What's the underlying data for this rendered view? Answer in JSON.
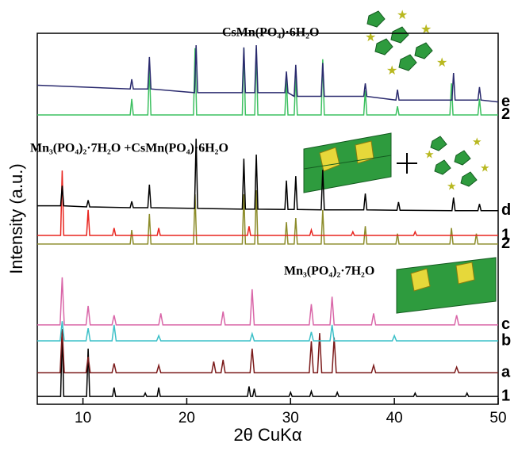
{
  "chart_data": {
    "type": "line",
    "x_label": "2θ CuKα",
    "y_label": "Intensity (a.u.)",
    "xlim": [
      5.6,
      50
    ],
    "ylim": [
      0,
      100
    ],
    "xticks": [
      10,
      20,
      30,
      40,
      50
    ],
    "annotations": [
      "CsMn(PO₄)·6H₂O",
      "Mn₃(PO₄)₂·7H₂O +CsMn(PO₄)·6H₂O",
      "Mn₃(PO₄)₂·7H₂O"
    ],
    "series": [
      {
        "name": "1",
        "color": "#000000",
        "x": [
          5.6,
          7.85,
          8,
          8.15,
          10.35,
          10.5,
          10.65,
          12.85,
          13,
          13.15,
          15.85,
          16,
          16.15,
          17.15,
          17.3,
          17.45,
          25.85,
          26,
          26.15,
          26.35,
          26.5,
          26.65,
          29.85,
          30,
          30.15,
          31.85,
          32,
          32.15,
          34.35,
          34.5,
          34.65,
          41.85,
          42,
          42.15,
          46.85,
          47,
          47.15,
          50
        ],
        "values": [
          2.1,
          2.1,
          19.7,
          2.1,
          2.1,
          15,
          2.1,
          2.1,
          4.5,
          2.1,
          2.1,
          3,
          2.1,
          2.1,
          4.5,
          2.1,
          2.1,
          4.8,
          2.1,
          2.1,
          4.2,
          2.1,
          2.1,
          3.2,
          2.1,
          2.1,
          3.5,
          2.1,
          2.1,
          3.2,
          2.1,
          2.1,
          3,
          2.1,
          2.1,
          3,
          2.1,
          2.1
        ]
      },
      {
        "name": "a",
        "color": "#7b1a1a",
        "x": [
          5.6,
          7.8,
          8,
          8.2,
          10.3,
          10.5,
          10.7,
          12.8,
          13,
          13.2,
          17.1,
          17.3,
          17.5,
          22.4,
          22.6,
          22.8,
          23.3,
          23.5,
          23.7,
          26.1,
          26.3,
          26.5,
          31.8,
          32,
          32.2,
          32.6,
          32.8,
          33,
          34,
          34.2,
          34.4,
          37.8,
          38,
          38.2,
          45.8,
          46,
          46.2,
          50
        ],
        "values": [
          8.5,
          8.5,
          20.3,
          8.5,
          8.5,
          12.8,
          8.5,
          8.5,
          11,
          8.5,
          8.5,
          10.5,
          8.5,
          8.5,
          11.5,
          8.5,
          8.5,
          12,
          8.5,
          8.5,
          15,
          8.5,
          8.5,
          17,
          8.5,
          8.5,
          19.2,
          8.5,
          8.5,
          18,
          8.5,
          8.5,
          10.5,
          8.5,
          8.5,
          10,
          8.5,
          8.5
        ]
      },
      {
        "name": "b",
        "color": "#3cc0c8",
        "x": [
          5.6,
          7.8,
          8,
          8.2,
          10.3,
          10.5,
          10.7,
          12.8,
          13,
          13.2,
          17.1,
          17.3,
          17.5,
          26.1,
          26.3,
          26.5,
          31.8,
          32,
          32.2,
          33.8,
          34,
          34.2,
          39.8,
          40,
          40.2,
          50
        ],
        "values": [
          17.1,
          17.1,
          22.4,
          17.1,
          17.1,
          20.5,
          17.1,
          17.1,
          21.4,
          17.1,
          17.1,
          18.5,
          17.1,
          17.1,
          19,
          17.1,
          17.1,
          19.5,
          17.1,
          17.1,
          21.4,
          17.1,
          17.1,
          18.5,
          17.1,
          17.1
        ]
      },
      {
        "name": "c",
        "color": "#d966a8",
        "x": [
          5.6,
          7.8,
          8,
          8.2,
          10.3,
          10.5,
          10.7,
          12.8,
          13,
          13.2,
          17.3,
          17.5,
          17.7,
          23.3,
          23.5,
          23.7,
          26.1,
          26.3,
          26.5,
          31.8,
          32,
          32.2,
          33.8,
          34,
          34.2,
          37.8,
          38,
          38.2,
          45.8,
          46,
          46.2,
          50
        ],
        "values": [
          21.4,
          21.4,
          34.2,
          21.4,
          21.4,
          26.5,
          21.4,
          21.4,
          24,
          21.4,
          21.4,
          24.5,
          21.4,
          21.4,
          25,
          21.4,
          21.4,
          31,
          21.4,
          21.4,
          27,
          21.4,
          21.4,
          29,
          21.4,
          21.4,
          24.5,
          21.4,
          21.4,
          24,
          21.4,
          21.4
        ]
      },
      {
        "name": "2",
        "color": "#8c8c2a",
        "x": [
          5.6,
          14.55,
          14.7,
          14.85,
          16.25,
          16.4,
          16.55,
          20.65,
          20.8,
          20.95,
          25.35,
          25.5,
          25.65,
          26.55,
          26.7,
          26.85,
          29.45,
          29.6,
          29.75,
          30.35,
          30.5,
          30.65,
          32.95,
          33.1,
          33.25,
          37.05,
          37.2,
          37.35,
          40.15,
          40.3,
          40.45,
          45.35,
          45.5,
          45.65,
          47.75,
          47.9,
          48.05,
          50
        ],
        "values": [
          43.2,
          43.2,
          47,
          43.2,
          43.2,
          51.3,
          43.2,
          43.2,
          56.6,
          43.2,
          43.2,
          56.6,
          43.2,
          43.2,
          57.7,
          43.2,
          43.2,
          49.1,
          43.2,
          43.2,
          50.2,
          43.2,
          43.2,
          52.4,
          43.2,
          43.2,
          48,
          43.2,
          43.2,
          46,
          43.2,
          43.2,
          47.5,
          43.2,
          43.2,
          46,
          43.2,
          43.2
        ]
      },
      {
        "name": "1",
        "color": "#e8251f",
        "x": [
          5.6,
          7.85,
          8,
          8.15,
          10.35,
          10.5,
          10.65,
          12.85,
          13,
          13.15,
          17.15,
          17.3,
          17.45,
          25.85,
          26,
          26.15,
          31.85,
          32,
          32.15,
          35.85,
          36,
          36.15,
          41.85,
          42,
          42.15,
          50
        ],
        "values": [
          45.5,
          45.5,
          63,
          45.5,
          45.5,
          52.4,
          45.5,
          45.5,
          47.5,
          45.5,
          45.5,
          47.5,
          45.5,
          45.5,
          48,
          45.5,
          45.5,
          47,
          45.5,
          45.5,
          46.5,
          45.5,
          45.5,
          46.5,
          45.5,
          45.5
        ]
      },
      {
        "name": "d",
        "color": "#000000",
        "x": [
          5.6,
          7.85,
          8,
          8.15,
          10.35,
          10.5,
          10.65,
          14.55,
          14.7,
          14.85,
          16.25,
          16.4,
          16.55,
          20.75,
          20.9,
          21.05,
          25.35,
          25.5,
          25.65,
          26.55,
          26.7,
          26.85,
          29.45,
          29.6,
          29.75,
          30.35,
          30.5,
          30.65,
          32.95,
          33.1,
          33.25,
          37.05,
          37.2,
          37.35,
          40.25,
          40.4,
          40.55,
          45.55,
          45.7,
          45.85,
          48.05,
          48.2,
          48.35,
          50
        ],
        "values": [
          53.5,
          53.5,
          58.9,
          53.5,
          53.2,
          55,
          53.2,
          53,
          54.7,
          53,
          53,
          59.2,
          53,
          52.8,
          71.6,
          52.8,
          52.6,
          66.2,
          52.6,
          52.6,
          67.3,
          52.6,
          52.5,
          60.3,
          52.5,
          52.5,
          61.5,
          52.5,
          52.4,
          63.2,
          52.4,
          52.4,
          56.8,
          52.4,
          52.3,
          54.5,
          52.3,
          52.2,
          55.7,
          52.2,
          52.2,
          54,
          52.2,
          52.2
        ]
      },
      {
        "name": "2",
        "color": "#3cc060",
        "x": [
          5.6,
          14.55,
          14.7,
          14.85,
          16.25,
          16.4,
          16.55,
          20.65,
          20.8,
          20.95,
          25.35,
          25.5,
          25.65,
          26.55,
          26.7,
          26.85,
          29.45,
          29.6,
          29.75,
          30.35,
          30.5,
          30.65,
          32.95,
          33.1,
          33.25,
          37.05,
          37.2,
          37.35,
          40.15,
          40.3,
          40.45,
          45.35,
          45.5,
          45.65,
          48.05,
          48.2,
          48.35,
          50
        ],
        "values": [
          78,
          78,
          82.3,
          78,
          78,
          90.8,
          78,
          78,
          96,
          78,
          78,
          96,
          78,
          78,
          96,
          78,
          78,
          87.6,
          78,
          78,
          88.7,
          78,
          78,
          93,
          78,
          78,
          84.6,
          78,
          78,
          80.3,
          78,
          78,
          86.5,
          78,
          78,
          82.3,
          78,
          78
        ]
      },
      {
        "name": "e",
        "color": "#2a2a6e",
        "x": [
          5.6,
          14.55,
          14.7,
          14.85,
          16.25,
          16.4,
          16.55,
          20.75,
          20.9,
          21.05,
          25.35,
          25.5,
          25.65,
          26.55,
          26.7,
          26.85,
          29.45,
          29.6,
          29.75,
          30.35,
          30.5,
          30.65,
          32.95,
          33.1,
          33.25,
          37.05,
          37.2,
          37.35,
          40.15,
          40.3,
          40.45,
          45.55,
          45.7,
          45.85,
          48.05,
          48.2,
          48.35,
          50
        ],
        "values": [
          86,
          85,
          87.6,
          85,
          85,
          93.6,
          85,
          84,
          96.8,
          84,
          84,
          96.2,
          84,
          84,
          96.8,
          84,
          84,
          89.7,
          84,
          83,
          91.5,
          83,
          83,
          92,
          83,
          83,
          86.5,
          83,
          82,
          84.8,
          82,
          82,
          89.3,
          82,
          82,
          85.5,
          82,
          81.5
        ]
      }
    ]
  }
}
